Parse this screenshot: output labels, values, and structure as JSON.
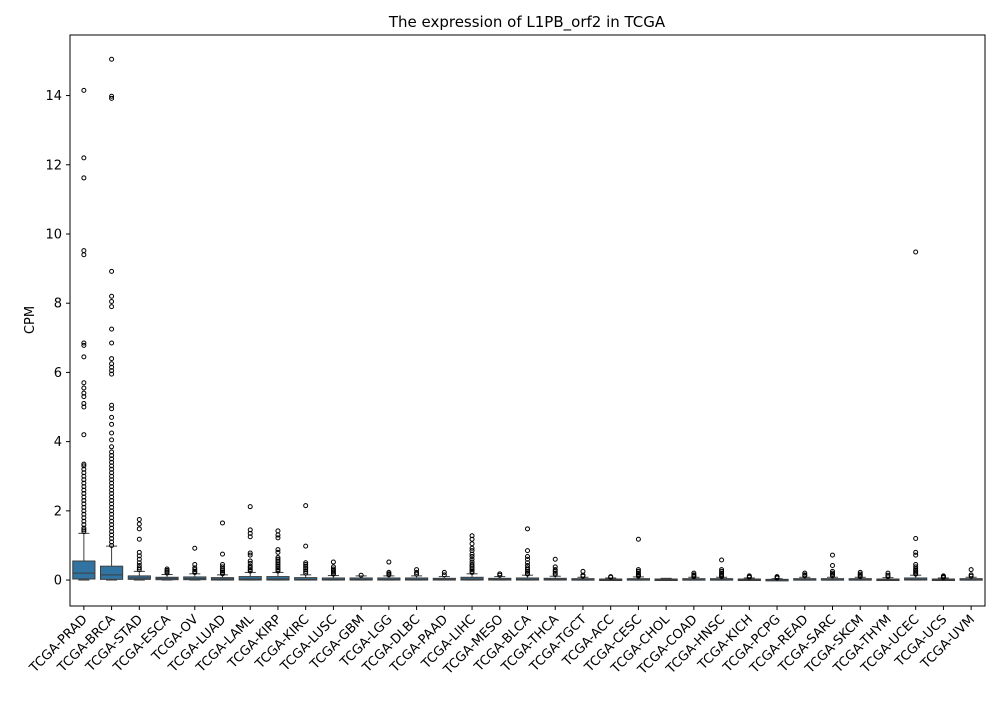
{
  "chart_data": {
    "type": "box",
    "title": "The expression of L1PB_orf2 in TCGA",
    "xlabel": "",
    "ylabel": "CPM",
    "ylim": [
      -0.75,
      15.75
    ],
    "yticks": [
      0,
      2,
      4,
      6,
      8,
      10,
      12,
      14
    ],
    "grid": false,
    "box_color": "#3274a1",
    "categories": [
      "TCGA-PRAD",
      "TCGA-BRCA",
      "TCGA-STAD",
      "TCGA-ESCA",
      "TCGA-OV",
      "TCGA-LUAD",
      "TCGA-LAML",
      "TCGA-KIRP",
      "TCGA-KIRC",
      "TCGA-LUSC",
      "TCGA-GBM",
      "TCGA-LGG",
      "TCGA-DLBC",
      "TCGA-PAAD",
      "TCGA-LIHC",
      "TCGA-MESO",
      "TCGA-BLCA",
      "TCGA-THCA",
      "TCGA-TGCT",
      "TCGA-ACC",
      "TCGA-CESC",
      "TCGA-CHOL",
      "TCGA-COAD",
      "TCGA-HNSC",
      "TCGA-KICH",
      "TCGA-PCPG",
      "TCGA-READ",
      "TCGA-SARC",
      "TCGA-SKCM",
      "TCGA-THYM",
      "TCGA-UCEC",
      "TCGA-UCS",
      "TCGA-UVM"
    ],
    "boxes": [
      {
        "q1": 0.03,
        "median": 0.2,
        "q3": 0.55,
        "wlo": 0.0,
        "whi": 1.35,
        "outliers": [
          14.15,
          12.2,
          11.62,
          9.52,
          9.4,
          6.85,
          6.78,
          6.45,
          5.7,
          5.55,
          5.4,
          5.3,
          5.1,
          5.0,
          4.2,
          3.35,
          3.3,
          3.2,
          3.1,
          3.0,
          2.9,
          2.8,
          2.7,
          2.6,
          2.5,
          2.4,
          2.3,
          2.2,
          2.1,
          2.0,
          1.9,
          1.8,
          1.7,
          1.6,
          1.5,
          1.45,
          1.4
        ]
      },
      {
        "q1": 0.02,
        "median": 0.15,
        "q3": 0.4,
        "wlo": 0.0,
        "whi": 0.98,
        "outliers": [
          15.05,
          13.98,
          13.92,
          8.92,
          8.2,
          8.05,
          7.9,
          7.25,
          6.85,
          6.4,
          6.25,
          6.15,
          6.05,
          5.95,
          5.05,
          4.95,
          4.7,
          4.5,
          4.25,
          4.05,
          3.85,
          3.7,
          3.6,
          3.5,
          3.4,
          3.3,
          3.2,
          3.1,
          3.0,
          2.9,
          2.8,
          2.7,
          2.6,
          2.5,
          2.4,
          2.3,
          2.2,
          2.1,
          2.0,
          1.9,
          1.8,
          1.7,
          1.6,
          1.5,
          1.4,
          1.3,
          1.2,
          1.1,
          1.0
        ]
      },
      {
        "q1": 0.02,
        "median": 0.06,
        "q3": 0.12,
        "wlo": 0.0,
        "whi": 0.25,
        "outliers": [
          1.75,
          1.62,
          1.48,
          1.18,
          0.8,
          0.7,
          0.6,
          0.5,
          0.42,
          0.35,
          0.3
        ]
      },
      {
        "q1": 0.01,
        "median": 0.04,
        "q3": 0.08,
        "wlo": 0.0,
        "whi": 0.16,
        "outliers": [
          0.32,
          0.28,
          0.24,
          0.2
        ]
      },
      {
        "q1": 0.01,
        "median": 0.04,
        "q3": 0.09,
        "wlo": 0.0,
        "whi": 0.18,
        "outliers": [
          0.92,
          0.45,
          0.35,
          0.3,
          0.25,
          0.22
        ]
      },
      {
        "q1": 0.0,
        "median": 0.03,
        "q3": 0.07,
        "wlo": 0.0,
        "whi": 0.15,
        "outliers": [
          1.65,
          0.75,
          0.45,
          0.38,
          0.32,
          0.27,
          0.22,
          0.18
        ]
      },
      {
        "q1": 0.0,
        "median": 0.03,
        "q3": 0.1,
        "wlo": 0.0,
        "whi": 0.22,
        "outliers": [
          2.12,
          1.45,
          1.35,
          1.25,
          0.78,
          0.72,
          0.55,
          0.48,
          0.4,
          0.35,
          0.3,
          0.26
        ]
      },
      {
        "q1": 0.0,
        "median": 0.03,
        "q3": 0.1,
        "wlo": 0.0,
        "whi": 0.22,
        "outliers": [
          1.42,
          1.3,
          1.22,
          0.88,
          0.8,
          0.65,
          0.6,
          0.55,
          0.5,
          0.45,
          0.4,
          0.35,
          0.3,
          0.26
        ]
      },
      {
        "q1": 0.0,
        "median": 0.02,
        "q3": 0.07,
        "wlo": 0.0,
        "whi": 0.15,
        "outliers": [
          2.15,
          0.98,
          0.5,
          0.45,
          0.4,
          0.35,
          0.3,
          0.25,
          0.2
        ]
      },
      {
        "q1": 0.0,
        "median": 0.02,
        "q3": 0.06,
        "wlo": 0.0,
        "whi": 0.13,
        "outliers": [
          0.52,
          0.38,
          0.32,
          0.28,
          0.24,
          0.2,
          0.17
        ]
      },
      {
        "q1": 0.0,
        "median": 0.02,
        "q3": 0.06,
        "wlo": 0.0,
        "whi": 0.12,
        "outliers": [
          0.14
        ]
      },
      {
        "q1": 0.0,
        "median": 0.02,
        "q3": 0.06,
        "wlo": 0.0,
        "whi": 0.12,
        "outliers": [
          0.52,
          0.22,
          0.18,
          0.15
        ]
      },
      {
        "q1": 0.0,
        "median": 0.02,
        "q3": 0.06,
        "wlo": 0.0,
        "whi": 0.12,
        "outliers": [
          0.3,
          0.22,
          0.17
        ]
      },
      {
        "q1": 0.0,
        "median": 0.02,
        "q3": 0.05,
        "wlo": 0.0,
        "whi": 0.1,
        "outliers": [
          0.22,
          0.15
        ]
      },
      {
        "q1": 0.0,
        "median": 0.03,
        "q3": 0.08,
        "wlo": 0.0,
        "whi": 0.18,
        "outliers": [
          1.28,
          1.18,
          1.05,
          0.92,
          0.85,
          0.75,
          0.68,
          0.6,
          0.52,
          0.45,
          0.4,
          0.35,
          0.3,
          0.25,
          0.22
        ]
      },
      {
        "q1": 0.0,
        "median": 0.02,
        "q3": 0.05,
        "wlo": 0.0,
        "whi": 0.1,
        "outliers": [
          0.18,
          0.14
        ]
      },
      {
        "q1": 0.0,
        "median": 0.02,
        "q3": 0.06,
        "wlo": 0.0,
        "whi": 0.14,
        "outliers": [
          1.48,
          0.85,
          0.68,
          0.6,
          0.5,
          0.42,
          0.35,
          0.3,
          0.25,
          0.2,
          0.17
        ]
      },
      {
        "q1": 0.0,
        "median": 0.02,
        "q3": 0.05,
        "wlo": 0.0,
        "whi": 0.11,
        "outliers": [
          0.6,
          0.38,
          0.3,
          0.25,
          0.2,
          0.16
        ]
      },
      {
        "q1": 0.0,
        "median": 0.01,
        "q3": 0.04,
        "wlo": 0.0,
        "whi": 0.08,
        "outliers": [
          0.25,
          0.14,
          0.11
        ]
      },
      {
        "q1": 0.0,
        "median": 0.01,
        "q3": 0.03,
        "wlo": 0.0,
        "whi": 0.06,
        "outliers": [
          0.1,
          0.08
        ]
      },
      {
        "q1": 0.0,
        "median": 0.01,
        "q3": 0.04,
        "wlo": 0.0,
        "whi": 0.09,
        "outliers": [
          1.18,
          0.3,
          0.25,
          0.2,
          0.16,
          0.13,
          0.11
        ]
      },
      {
        "q1": 0.0,
        "median": 0.01,
        "q3": 0.03,
        "wlo": 0.0,
        "whi": 0.05,
        "outliers": []
      },
      {
        "q1": 0.0,
        "median": 0.01,
        "q3": 0.04,
        "wlo": 0.0,
        "whi": 0.08,
        "outliers": [
          0.2,
          0.15,
          0.12,
          0.1
        ]
      },
      {
        "q1": 0.0,
        "median": 0.01,
        "q3": 0.04,
        "wlo": 0.0,
        "whi": 0.08,
        "outliers": [
          0.58,
          0.3,
          0.25,
          0.2,
          0.16,
          0.13,
          0.1
        ]
      },
      {
        "q1": 0.0,
        "median": 0.01,
        "q3": 0.03,
        "wlo": 0.0,
        "whi": 0.06,
        "outliers": [
          0.12,
          0.09,
          0.08
        ]
      },
      {
        "q1": 0.0,
        "median": 0.01,
        "q3": 0.02,
        "wlo": 0.0,
        "whi": 0.04,
        "outliers": [
          0.1,
          0.08,
          0.06
        ]
      },
      {
        "q1": 0.0,
        "median": 0.01,
        "q3": 0.04,
        "wlo": 0.0,
        "whi": 0.08,
        "outliers": [
          0.2,
          0.15,
          0.12
        ]
      },
      {
        "q1": 0.0,
        "median": 0.01,
        "q3": 0.04,
        "wlo": 0.0,
        "whi": 0.08,
        "outliers": [
          0.72,
          0.42,
          0.25,
          0.2,
          0.16,
          0.12
        ]
      },
      {
        "q1": 0.0,
        "median": 0.01,
        "q3": 0.04,
        "wlo": 0.0,
        "whi": 0.08,
        "outliers": [
          0.22,
          0.17,
          0.13,
          0.1
        ]
      },
      {
        "q1": 0.0,
        "median": 0.01,
        "q3": 0.03,
        "wlo": 0.0,
        "whi": 0.07,
        "outliers": [
          0.2,
          0.14,
          0.1
        ]
      },
      {
        "q1": 0.0,
        "median": 0.02,
        "q3": 0.06,
        "wlo": 0.0,
        "whi": 0.14,
        "outliers": [
          9.48,
          1.2,
          0.8,
          0.72,
          0.45,
          0.38,
          0.32,
          0.28,
          0.24,
          0.2,
          0.17
        ]
      },
      {
        "q1": 0.0,
        "median": 0.01,
        "q3": 0.03,
        "wlo": 0.0,
        "whi": 0.06,
        "outliers": [
          0.12,
          0.09,
          0.07
        ]
      },
      {
        "q1": 0.0,
        "median": 0.01,
        "q3": 0.04,
        "wlo": 0.0,
        "whi": 0.08,
        "outliers": [
          0.3,
          0.15,
          0.11
        ]
      }
    ]
  }
}
